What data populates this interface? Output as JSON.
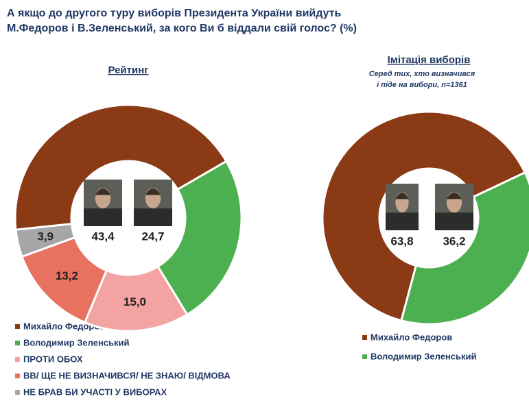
{
  "title": [
    "А якщо до другого туру виборів Президента України вийдуть",
    "М.Федоров і В.Зеленський, за кого Ви б віддали свій голос? (%)"
  ],
  "chart_data": [
    {
      "type": "donut",
      "title": "Рейтинг",
      "categories": [
        "Михайло Федоров",
        "Володимир Зеленський",
        "ПРОТИ ОБОХ",
        "ВВ/ ЩЕ НЕ ВИЗНАЧИВСЯ/ НЕ ЗНАЮ/ ВІДМОВА",
        "НЕ БРАВ БИ УЧАСТІ У ВИБОРАХ"
      ],
      "values": [
        43.4,
        24.7,
        15.0,
        13.2,
        3.9
      ],
      "value_labels": [
        "43,4",
        "24,7",
        "15,0",
        "13,2",
        "3,9"
      ],
      "colors": [
        "#8b3a16",
        "#4caf50",
        "#f4a3a3",
        "#e8715f",
        "#a6a6a6"
      ]
    },
    {
      "type": "donut",
      "title": "Імітація виборів",
      "subtitle": [
        "Серед тих, хто визначився",
        "і піде на вибори, n=1361"
      ],
      "categories": [
        "Михайло Федоров",
        "Володимир Зеленський"
      ],
      "values": [
        63.8,
        36.2
      ],
      "value_labels": [
        "63,8",
        "36,2"
      ],
      "colors": [
        "#8b3a16",
        "#4caf50"
      ]
    }
  ]
}
